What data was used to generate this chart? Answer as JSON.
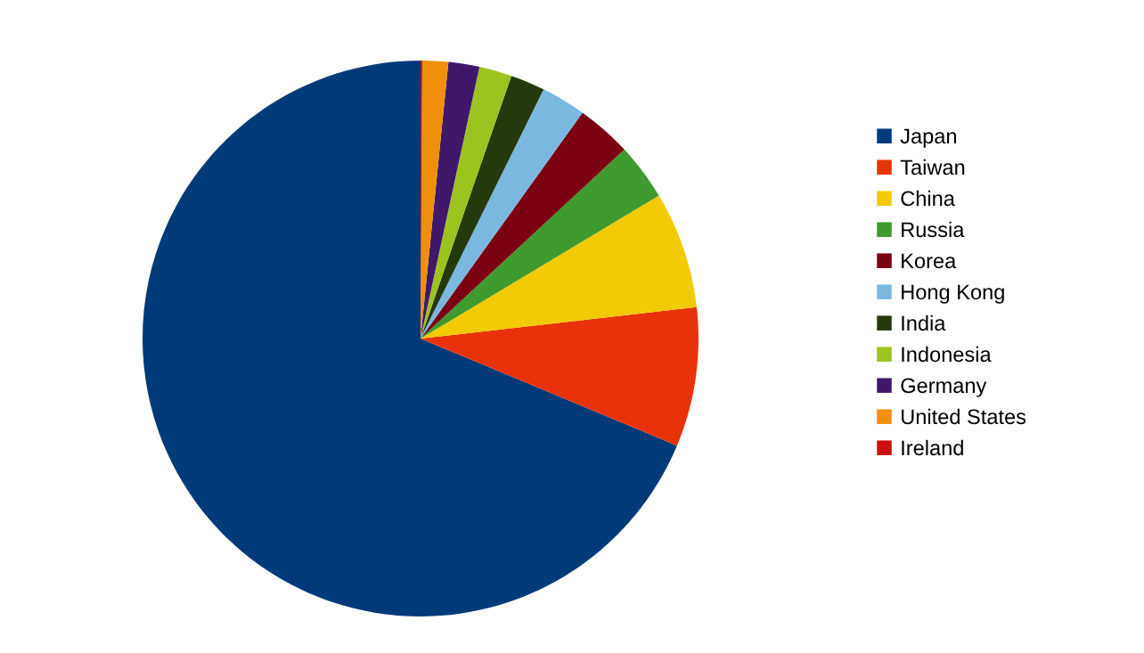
{
  "chart_data": {
    "type": "pie",
    "categories": [
      "Japan",
      "Taiwan",
      "China",
      "Russia",
      "Korea",
      "Hong Kong",
      "India",
      "Indonesia",
      "Germany",
      "United States",
      "Ireland"
    ],
    "values": [
      68.7,
      8.1,
      6.8,
      3.3,
      3.2,
      2.6,
      2.0,
      1.9,
      1.8,
      1.5,
      0.1
    ],
    "colors": [
      "#003a78",
      "#e8320a",
      "#f2cb05",
      "#3f9a2f",
      "#7a0012",
      "#7ab8e0",
      "#243a0c",
      "#9dc41e",
      "#40186a",
      "#f0900a",
      "#cc1010"
    ],
    "legend": "right"
  }
}
